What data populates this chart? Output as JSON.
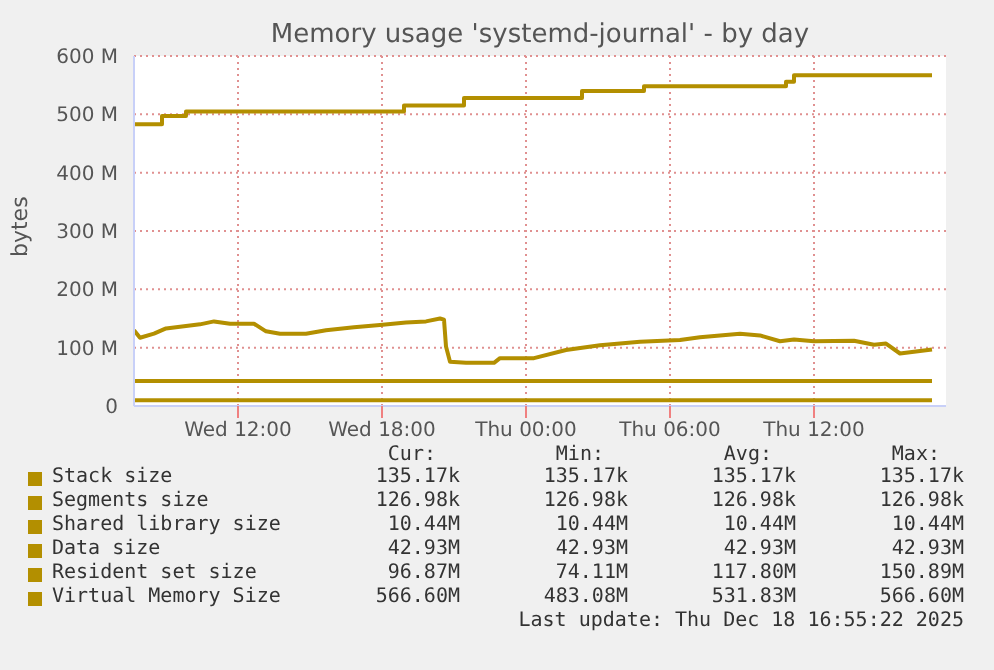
{
  "chart_data": {
    "type": "line",
    "title": "Memory usage 'systemd-journal' - by day",
    "ylabel": "bytes",
    "xlim": [
      "2025-12-17T07:40",
      "2025-12-18T17:30"
    ],
    "xticks": [
      {
        "value": "2025-12-17T12:00",
        "label": "Wed 12:00"
      },
      {
        "value": "2025-12-17T18:00",
        "label": "Wed 18:00"
      },
      {
        "value": "2025-12-18T00:00",
        "label": "Thu 00:00"
      },
      {
        "value": "2025-12-18T06:00",
        "label": "Thu 06:00"
      },
      {
        "value": "2025-12-18T12:00",
        "label": "Thu 12:00"
      }
    ],
    "ylim": [
      0,
      600
    ],
    "yticks": [
      0,
      {
        "value": 100,
        "label": "100 M"
      },
      {
        "value": 200,
        "label": "200 M"
      },
      {
        "value": 300,
        "label": "300 M"
      },
      {
        "value": 400,
        "label": "400 M"
      },
      {
        "value": 500,
        "label": "500 M"
      },
      {
        "value": 600,
        "label": "600 M"
      }
    ],
    "grid": true,
    "legend": "bottom",
    "line_style": "solid",
    "series": [
      {
        "name": "Stack size",
        "type": "step",
        "color": "#b38f00"
      },
      {
        "name": "Segments size",
        "type": "step",
        "color": "#b38f00"
      },
      {
        "name": "Shared library size",
        "type": "step",
        "color": "#b38f00",
        "x": [
          "2025-12-17T07:40",
          "2025-12-18T16:55"
        ],
        "values": [
          10,
          10
        ]
      },
      {
        "name": "Data size",
        "type": "step",
        "color": "#b38f00",
        "x": [
          "2025-12-17T07:40",
          "2025-12-18T16:55"
        ],
        "values": [
          43,
          43
        ]
      },
      {
        "name": "Resident set size",
        "type": "line",
        "color": "#b38f00",
        "x": [
          "2025-12-17T07:40",
          "2025-12-17T07:55",
          "2025-12-17T08:30",
          "2025-12-17T09:00",
          "2025-12-17T09:35",
          "2025-12-17T10:25",
          "2025-12-17T11:00",
          "2025-12-17T11:40",
          "2025-12-17T12:40",
          "2025-12-17T13:10",
          "2025-12-17T13:45",
          "2025-12-17T14:50",
          "2025-12-17T15:40",
          "2025-12-17T16:50",
          "2025-12-17T17:55",
          "2025-12-17T19:00",
          "2025-12-17T19:50",
          "2025-12-17T20:25",
          "2025-12-17T20:35",
          "2025-12-17T20:40",
          "2025-12-17T20:50",
          "2025-12-17T21:30",
          "2025-12-17T22:40",
          "2025-12-17T22:55",
          "2025-12-18T00:20",
          "2025-12-18T01:40",
          "2025-12-18T03:05",
          "2025-12-18T04:45",
          "2025-12-18T06:25",
          "2025-12-18T07:15",
          "2025-12-18T08:55",
          "2025-12-18T09:45",
          "2025-12-18T10:35",
          "2025-12-18T11:10",
          "2025-12-18T12:00",
          "2025-12-18T13:40",
          "2025-12-18T14:30",
          "2025-12-18T15:00",
          "2025-12-18T15:35",
          "2025-12-18T16:55"
        ],
        "values": [
          130,
          117,
          124,
          133,
          136,
          140,
          145,
          141,
          141,
          128,
          124,
          124,
          130,
          135,
          139,
          143,
          145,
          150,
          148,
          102,
          76,
          74,
          74,
          82,
          82,
          96,
          104,
          110,
          113,
          118,
          124,
          121,
          111,
          114,
          111,
          112,
          105,
          107,
          90,
          97
        ]
      },
      {
        "name": "Virtual Memory Size",
        "type": "step",
        "color": "#b38f00",
        "x": [
          "2025-12-17T07:40",
          "2025-12-17T08:50",
          "2025-12-17T09:50",
          "2025-12-17T18:55",
          "2025-12-17T21:25",
          "2025-12-18T02:20",
          "2025-12-18T04:55",
          "2025-12-18T10:50",
          "2025-12-18T11:10",
          "2025-12-18T16:55"
        ],
        "values": [
          483,
          497,
          505,
          515,
          528,
          540,
          548,
          556,
          567,
          567
        ]
      }
    ],
    "annotations": [
      "Cur:",
      "Min:",
      "Avg:",
      "Max:",
      "135.17k",
      "135.17k",
      "135.17k",
      "135.17k",
      "126.98k",
      "126.98k",
      "126.98k",
      "126.98k",
      "10.44M",
      "10.44M",
      "10.44M",
      "10.44M",
      "42.93M",
      "42.93M",
      "42.93M",
      "42.93M",
      "96.87M",
      "74.11M",
      "117.80M",
      "150.89M",
      "566.60M",
      "483.08M",
      "531.83M",
      "566.60M",
      "Last update: Thu Dec 18 16:55:22 2025"
    ]
  }
}
